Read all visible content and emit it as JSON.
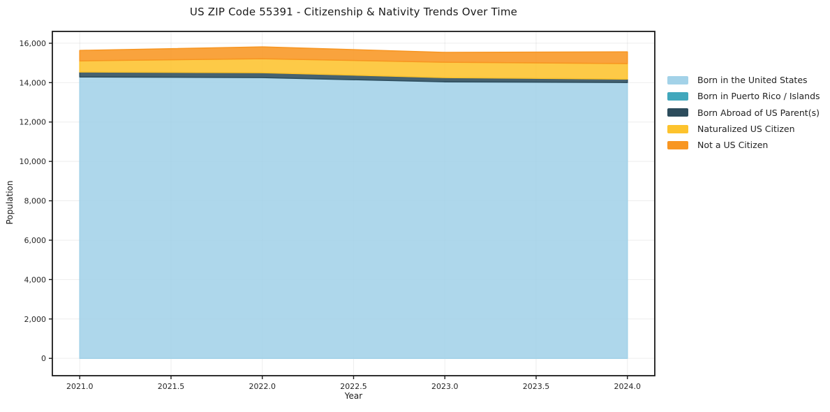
{
  "title": "US ZIP Code 55391 - Citizenship & Nativity Trends Over Time",
  "chart_data": {
    "type": "area",
    "stacked": true,
    "title": "US ZIP Code 55391 - Citizenship & Nativity Trends Over Time",
    "xlabel": "Year",
    "ylabel": "Population",
    "x": [
      2021,
      2022,
      2023,
      2024
    ],
    "series": [
      {
        "name": "Born in the United States",
        "color": "#a3d2e8",
        "values": [
          14290,
          14255,
          14040,
          14005
        ]
      },
      {
        "name": "Born in Puerto Rico / Islands",
        "color": "#41a7bc",
        "values": [
          0,
          0,
          0,
          0
        ]
      },
      {
        "name": "Born Abroad of US Parent(s)",
        "color": "#2c4c5c",
        "values": [
          250,
          250,
          215,
          175
        ]
      },
      {
        "name": "Naturalized US Citizen",
        "color": "#fdc32d",
        "values": [
          565,
          710,
          780,
          785
        ]
      },
      {
        "name": "Not a US Citizen",
        "color": "#f89622",
        "values": [
          530,
          600,
          500,
          600
        ]
      }
    ],
    "totals": [
      15635,
      15815,
      15535,
      15565
    ],
    "xlim": [
      2020.85,
      2024.15
    ],
    "ylim": [
      -880,
      16600
    ],
    "x_ticks": {
      "values": [
        2021.0,
        2021.5,
        2022.0,
        2022.5,
        2023.0,
        2023.5,
        2024.0
      ],
      "labels": [
        "2021.0",
        "2021.5",
        "2022.0",
        "2022.5",
        "2023.0",
        "2023.5",
        "2024.0"
      ]
    },
    "y_ticks": {
      "values": [
        0,
        2000,
        4000,
        6000,
        8000,
        10000,
        12000,
        14000,
        16000
      ],
      "labels": [
        "0",
        "2,000",
        "4,000",
        "6,000",
        "8,000",
        "10,000",
        "12,000",
        "14,000",
        "16,000"
      ]
    },
    "grid": true,
    "legend_position": "right-outside",
    "fill_opacity": 0.88,
    "axis_color": "#1a1a1a",
    "grid_color": "#000000",
    "grid_alpha": 0.07,
    "tick_label_color": "#262626"
  }
}
